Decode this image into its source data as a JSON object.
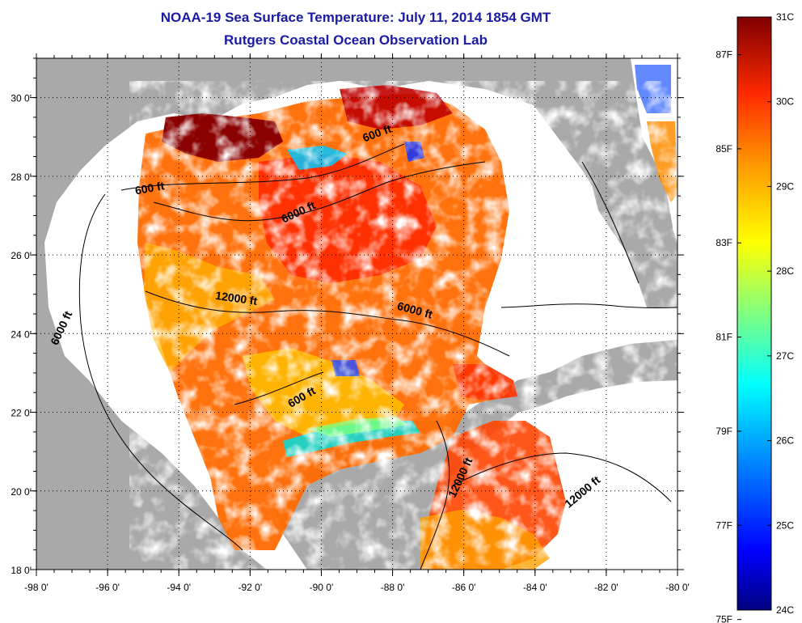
{
  "title": {
    "line1": "NOAA-19 Sea Surface Temperature:  July 11, 2014 1854 GMT",
    "line2": "Rutgers Coastal Ocean Observation Lab"
  },
  "map": {
    "lon_labels": [
      "-98 0'",
      "-96 0'",
      "-94 0'",
      "-92 0'",
      "-90 0'",
      "-88 0'",
      "-86 0'",
      "-84 0'",
      "-82 0'",
      "-80 0'"
    ],
    "lat_labels": [
      "30 0'",
      "28 0'",
      "26 0'",
      "24 0'",
      "22 0'",
      "20 0'",
      "18 0'"
    ],
    "contour_labels": [
      {
        "text": "600 ft",
        "lon": -94.8,
        "lat": 27.6,
        "rot": -10
      },
      {
        "text": "600 ft",
        "lon": -88.4,
        "lat": 29.0,
        "rot": -20
      },
      {
        "text": "6000 ft",
        "lon": -90.6,
        "lat": 27.0,
        "rot": -25
      },
      {
        "text": "6000 ft",
        "lon": -97.2,
        "lat": 24.1,
        "rot": -65
      },
      {
        "text": "12000 ft",
        "lon": -92.4,
        "lat": 24.8,
        "rot": 8
      },
      {
        "text": "6000 ft",
        "lon": -87.4,
        "lat": 24.5,
        "rot": 15
      },
      {
        "text": "600 ft",
        "lon": -90.5,
        "lat": 22.3,
        "rot": -30
      },
      {
        "text": "12000 ft",
        "lon": -86.0,
        "lat": 20.3,
        "rot": -65
      },
      {
        "text": "12000 ft",
        "lon": -82.6,
        "lat": 19.9,
        "rot": -40
      }
    ],
    "land_color": "#a9a9a9",
    "water_no_data_color": "#ffffff"
  },
  "colorbar": {
    "celsius_labels": [
      "31C",
      "30C",
      "29C",
      "28C",
      "27C",
      "26C",
      "25C",
      "24C"
    ],
    "fahrenheit_labels": [
      "87F",
      "85F",
      "83F",
      "81F",
      "79F",
      "77F",
      "75F"
    ],
    "colors": [
      "#000080",
      "#0000ff",
      "#00b4ff",
      "#00ffff",
      "#80ff80",
      "#ffff00",
      "#ff9900",
      "#ff2a00",
      "#800000"
    ]
  }
}
